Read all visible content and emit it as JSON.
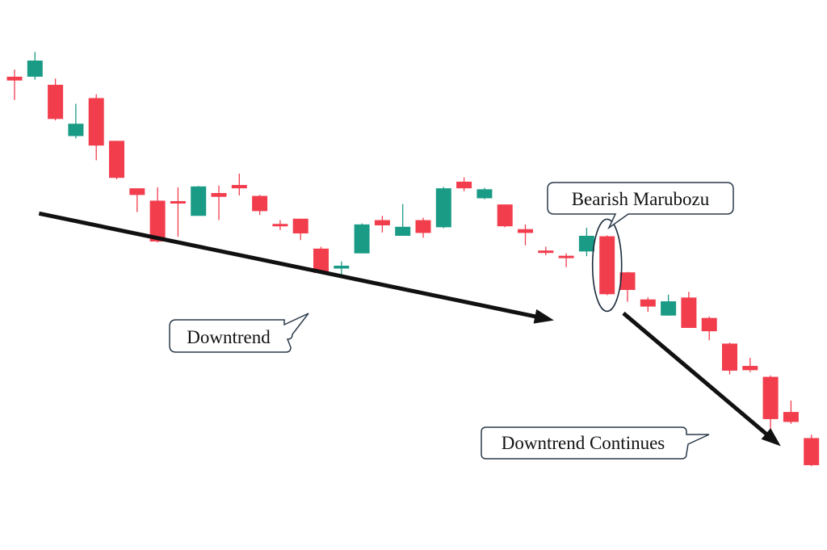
{
  "chart_data": {
    "type": "candlestick",
    "title": "",
    "xlabel": "",
    "ylabel": "",
    "axes_visible": false,
    "grid": false,
    "ylim": [
      0,
      100
    ],
    "colors": {
      "up": "#1a9b86",
      "down": "#f23d4d",
      "arrow": "#111111",
      "callout_border": "#2b3a4a"
    },
    "candles": [
      {
        "open": 89.8,
        "close": 89.0,
        "high": 91.3,
        "low": 84.9
      },
      {
        "open": 89.8,
        "close": 93.2,
        "high": 95.0,
        "low": 89.2
      },
      {
        "open": 88.1,
        "close": 80.9,
        "high": 89.4,
        "low": 80.6
      },
      {
        "open": 77.3,
        "close": 79.9,
        "high": 84.1,
        "low": 76.8
      },
      {
        "open": 85.3,
        "close": 75.3,
        "high": 86.1,
        "low": 72.2
      },
      {
        "open": 76.3,
        "close": 68.5,
        "high": 76.3,
        "low": 68.2
      },
      {
        "open": 66.3,
        "close": 64.9,
        "high": 66.3,
        "low": 61.3
      },
      {
        "open": 63.7,
        "close": 55.1,
        "high": 66.5,
        "low": 54.9
      },
      {
        "open": 63.6,
        "close": 63.2,
        "high": 66.5,
        "low": 56.1
      },
      {
        "open": 60.5,
        "close": 66.7,
        "high": 66.8,
        "low": 60.5
      },
      {
        "open": 65.3,
        "close": 64.5,
        "high": 66.9,
        "low": 59.6
      },
      {
        "open": 67.0,
        "close": 66.3,
        "high": 69.4,
        "low": 64.8
      },
      {
        "open": 64.7,
        "close": 61.5,
        "high": 64.9,
        "low": 60.7
      },
      {
        "open": 58.8,
        "close": 58.4,
        "high": 59.6,
        "low": 57.5
      },
      {
        "open": 59.9,
        "close": 56.8,
        "high": 59.9,
        "low": 55.4
      },
      {
        "open": 53.6,
        "close": 48.5,
        "high": 54.0,
        "low": 48.3
      },
      {
        "open": 49.4,
        "close": 50.0,
        "high": 50.9,
        "low": 47.4
      },
      {
        "open": 52.6,
        "close": 58.7,
        "high": 58.9,
        "low": 52.6
      },
      {
        "open": 59.6,
        "close": 58.5,
        "high": 60.5,
        "low": 57.0
      },
      {
        "open": 56.3,
        "close": 58.2,
        "high": 63.0,
        "low": 56.3
      },
      {
        "open": 59.6,
        "close": 56.9,
        "high": 60.1,
        "low": 55.9
      },
      {
        "open": 58.1,
        "close": 66.3,
        "high": 66.6,
        "low": 57.9
      },
      {
        "open": 67.7,
        "close": 66.3,
        "high": 68.6,
        "low": 65.7
      },
      {
        "open": 64.2,
        "close": 66.1,
        "high": 66.4,
        "low": 64.0
      },
      {
        "open": 62.9,
        "close": 58.3,
        "high": 62.9,
        "low": 58.1
      },
      {
        "open": 57.7,
        "close": 56.9,
        "high": 58.7,
        "low": 54.3
      },
      {
        "open": 53.2,
        "close": 52.9,
        "high": 54.0,
        "low": 52.2
      },
      {
        "open": 52.1,
        "close": 51.7,
        "high": 52.6,
        "low": 49.7
      },
      {
        "open": 53.0,
        "close": 56.3,
        "high": 58.0,
        "low": 52.0
      },
      {
        "open": 56.2,
        "close": 44.0,
        "high": 56.4,
        "low": 43.8
      },
      {
        "open": 48.6,
        "close": 44.9,
        "high": 48.7,
        "low": 42.4
      },
      {
        "open": 42.9,
        "close": 41.4,
        "high": 43.3,
        "low": 40.3
      },
      {
        "open": 39.5,
        "close": 42.5,
        "high": 43.9,
        "low": 39.5
      },
      {
        "open": 43.3,
        "close": 36.9,
        "high": 44.5,
        "low": 36.9
      },
      {
        "open": 39.0,
        "close": 36.2,
        "high": 39.3,
        "low": 34.3
      },
      {
        "open": 33.6,
        "close": 27.9,
        "high": 33.8,
        "low": 27.1
      },
      {
        "open": 28.9,
        "close": 28.0,
        "high": 30.6,
        "low": 27.6
      },
      {
        "open": 26.6,
        "close": 17.7,
        "high": 26.9,
        "low": 15.5
      },
      {
        "open": 19.2,
        "close": 17.1,
        "high": 21.6,
        "low": 16.7
      },
      {
        "open": 13.7,
        "close": 8.0,
        "high": 14.4,
        "low": 7.8
      }
    ],
    "annotations": [
      {
        "label": "Downtrend",
        "type": "trend-arrow",
        "from_candle": 1.2,
        "from_value": 61.0,
        "to_candle": 26.4,
        "to_value": 38.5
      },
      {
        "label": "Bearish Marubozu",
        "type": "highlight",
        "candle": 29
      },
      {
        "label": "Downtrend Continues",
        "type": "trend-arrow",
        "from_candle": 29.8,
        "from_value": 40.0,
        "to_candle": 37.5,
        "to_value": 12.0
      }
    ]
  }
}
